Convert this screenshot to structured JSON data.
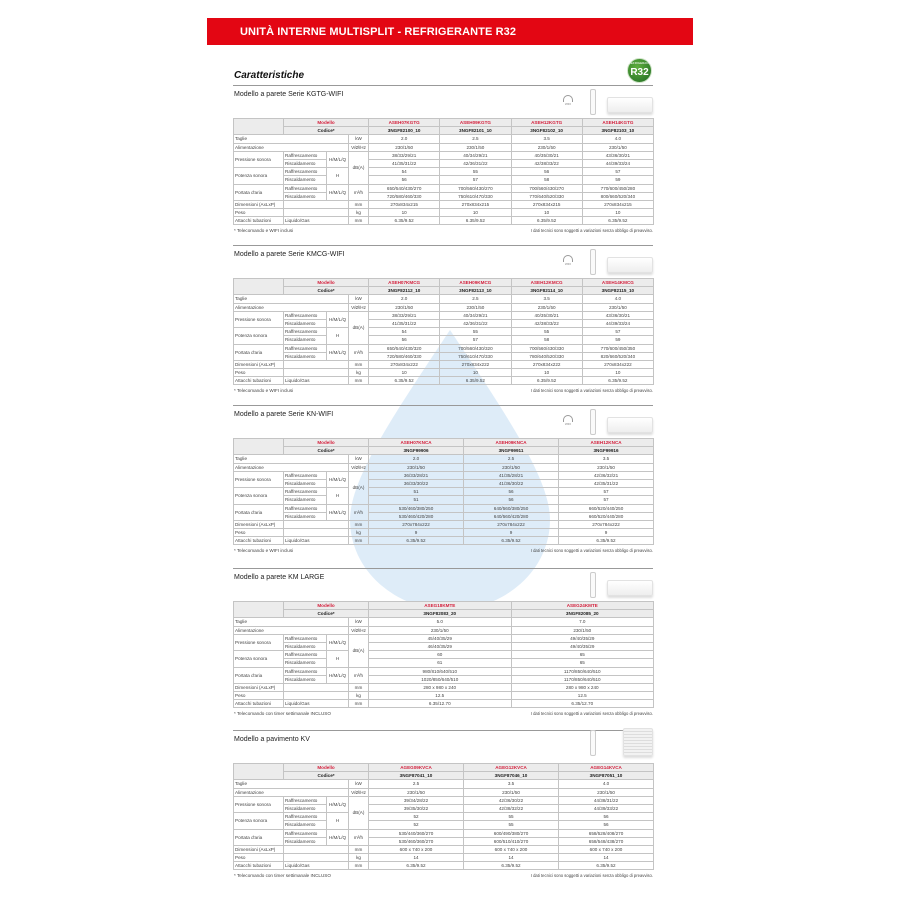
{
  "header": {
    "title": "UNITÀ INTERNE MULTISPLIT - REFRIGERANTE R32"
  },
  "heading": "Caratteristiche",
  "badge": {
    "text": "R32",
    "small": "REFRIGERANT",
    "color": "#2e8b2e"
  },
  "colors": {
    "brand_red": "#e30613",
    "model_red": "#d4213d"
  },
  "labels": {
    "modello": "Modello",
    "codice": "Codice*",
    "taglie": "Taglie",
    "alimentazione": "Alimentazione",
    "pressione": "Pressione sonora",
    "potenza": "Potenza sonora",
    "portata": "Portata d'aria",
    "dimensioni": "Dimensioni (AxLxP)",
    "peso": "Peso",
    "attacchi": "Attacchi tubazioni",
    "raff": "Raffrescamento",
    "risc": "Riscaldamento",
    "hmlq": "H/M/L/Q",
    "h": "H",
    "liquido": "Liquido/Gas",
    "u_kw": "kW",
    "u_alim": "V/Ø/Hz",
    "u_db": "dB(A)",
    "u_m3": "m³/h",
    "u_mm": "mm",
    "u_kg": "kg",
    "disclaimer": "I dati tecnici sono soggetti a variazioni senza obbligo di preavviso."
  },
  "sections": [
    {
      "title": "Modello a parete Serie KGTG-WIFI",
      "note": "* Telecomando e WIFI inclusi",
      "wifi": "WIFI",
      "floor": false,
      "models": [
        {
          "name": "ASEH07KGTG",
          "code": "3NGF82100_10",
          "values": [
            "2.0",
            "230/1/50",
            "38/33/29/21",
            "41/35/31/22",
            "54",
            "56",
            "650/540/430/270",
            "720/580/460/330",
            "270x834x215",
            "10",
            "6.35/9.52"
          ]
        },
        {
          "name": "ASEH09KGTG",
          "code": "3NGF82101_10",
          "values": [
            "2.5",
            "230/1/50",
            "40/34/29/21",
            "42/36/31/22",
            "55",
            "57",
            "700/560/430/270",
            "750/610/470/330",
            "270x834x215",
            "10",
            "6.35/9.52"
          ]
        },
        {
          "name": "ASEH12KGTG",
          "code": "3NGF82102_10",
          "values": [
            "3.5",
            "230/1/50",
            "40/35/30/21",
            "42/38/33/22",
            "56",
            "58",
            "700/560/430/270",
            "770/640/520/330",
            "270x834x215",
            "10",
            "6.35/9.52"
          ]
        },
        {
          "name": "ASEH14KGTG",
          "code": "3NGF82103_10",
          "values": [
            "4.0",
            "230/1/50",
            "43/36/30/21",
            "44/39/33/24",
            "57",
            "59",
            "770/600/450/280",
            "800/660/520/340",
            "270x834x215",
            "10",
            "6.35/9.52"
          ]
        }
      ]
    },
    {
      "title": "Modello a parete Serie KMCG-WIFI",
      "note": "* Telecomando e WIFI inclusi",
      "wifi": "WIFI",
      "floor": false,
      "models": [
        {
          "name": "ASEH07KMCG",
          "code": "3NGF82112_10",
          "values": [
            "2.0",
            "230/1/50",
            "38/33/29/21",
            "41/35/31/22",
            "54",
            "56",
            "650/540/430/320",
            "720/580/460/330",
            "270x834x222",
            "10",
            "6.35/9.52"
          ]
        },
        {
          "name": "ASEH09KMCG",
          "code": "3NGF82113_10",
          "values": [
            "2.5",
            "230/1/50",
            "40/34/29/21",
            "42/36/31/22",
            "55",
            "57",
            "700/560/430/320",
            "750/610/470/330",
            "270x834x222",
            "10",
            "6.35/9.52"
          ]
        },
        {
          "name": "ASEH12KMCG",
          "code": "3NGF82114_10",
          "values": [
            "3.5",
            "230/1/50",
            "40/35/30/21",
            "42/38/33/22",
            "55",
            "58",
            "700/560/430/330",
            "780/640/520/330",
            "270x834x222",
            "10",
            "6.35/9.52"
          ]
        },
        {
          "name": "ASEH14KMCG",
          "code": "3NGF82115_10",
          "values": [
            "4.0",
            "230/1/50",
            "43/36/30/21",
            "44/39/33/24",
            "57",
            "59",
            "770/600/450/350",
            "820/660/520/340",
            "270x834x222",
            "10",
            "6.35/9.52"
          ]
        }
      ]
    },
    {
      "title": "Modello a parete Serie KN-WIFI",
      "note": "* Telecomando e WIFI inclusi",
      "wifi": "WIFI",
      "floor": false,
      "models": [
        {
          "name": "ASEH07KNCA",
          "code": "3NGF99906",
          "values": [
            "2.0",
            "230/1/50",
            "36/33/28/21",
            "36/33/30/22",
            "51",
            "51",
            "530/460/380/250",
            "530/460/420/280",
            "270x784x222",
            "9",
            "6.35/9.52"
          ]
        },
        {
          "name": "ASEH09KNCA",
          "code": "3NGF99911",
          "values": [
            "2.5",
            "230/1/50",
            "41/35/28/21",
            "41/36/30/22",
            "56",
            "56",
            "640/560/380/250",
            "640/560/420/280",
            "270x784x222",
            "9",
            "6.35/9.52"
          ]
        },
        {
          "name": "ASEH12KNCA",
          "code": "3NGF99916",
          "values": [
            "3.5",
            "230/1/50",
            "42/36/32/21",
            "42/35/31/22",
            "57",
            "57",
            "660/520/440/250",
            "660/520/440/280",
            "270x784x222",
            "9",
            "6.35/9.52"
          ]
        }
      ]
    },
    {
      "title": "Modello a parete KM LARGE",
      "note": "* Telecomando con timer settimanale INCLUSO",
      "wifi": "",
      "floor": false,
      "models": [
        {
          "name": "ASEG18KMTE",
          "code": "3NGF82083_20",
          "values": [
            "5.0",
            "230/1/50",
            "45/40/35/29",
            "46/40/35/29",
            "60",
            "61",
            "980/810/640/510",
            "1020/850/640/510",
            "280 x 980 x 240",
            "12.5",
            "6.35/12.70"
          ]
        },
        {
          "name": "ASEG24KMTE",
          "code": "3NGF82085_20",
          "values": [
            "7.0",
            "230/1/50",
            "49/40/35/29",
            "49/40/35/29",
            "65",
            "65",
            "1170/850/640/510",
            "1170/850/640/510",
            "280 x 980 x 240",
            "12.5",
            "6.35/12.70"
          ]
        }
      ]
    },
    {
      "title": "Modello a pavimento KV",
      "note": "* Telecomando con timer settimanale INCLUSO",
      "wifi": "",
      "floor": true,
      "models": [
        {
          "name": "AGEG09KVCA",
          "code": "3NGF87041_10",
          "values": [
            "2.5",
            "230/1/50",
            "39/34/28/22",
            "39/35/30/22",
            "52",
            "52",
            "530/440/360/270",
            "530/460/360/270",
            "600 x 740 x 200",
            "14",
            "6.35/9.52"
          ]
        },
        {
          "name": "AGEG12KVCA",
          "code": "3NGF87046_10",
          "values": [
            "3.5",
            "230/1/50",
            "42/36/30/22",
            "42/38/32/22",
            "55",
            "55",
            "600/490/380/270",
            "600/510/410/270",
            "600 x 740 x 200",
            "14",
            "6.35/9.52"
          ]
        },
        {
          "name": "AGEG14KVCA",
          "code": "3NGF87051_10",
          "values": [
            "4.0",
            "230/1/50",
            "44/38/31/22",
            "44/39/33/22",
            "56",
            "56",
            "658/528/408/270",
            "658/548/438/270",
            "600 x 740 x 200",
            "14",
            "6.35/9.52"
          ]
        }
      ]
    }
  ]
}
